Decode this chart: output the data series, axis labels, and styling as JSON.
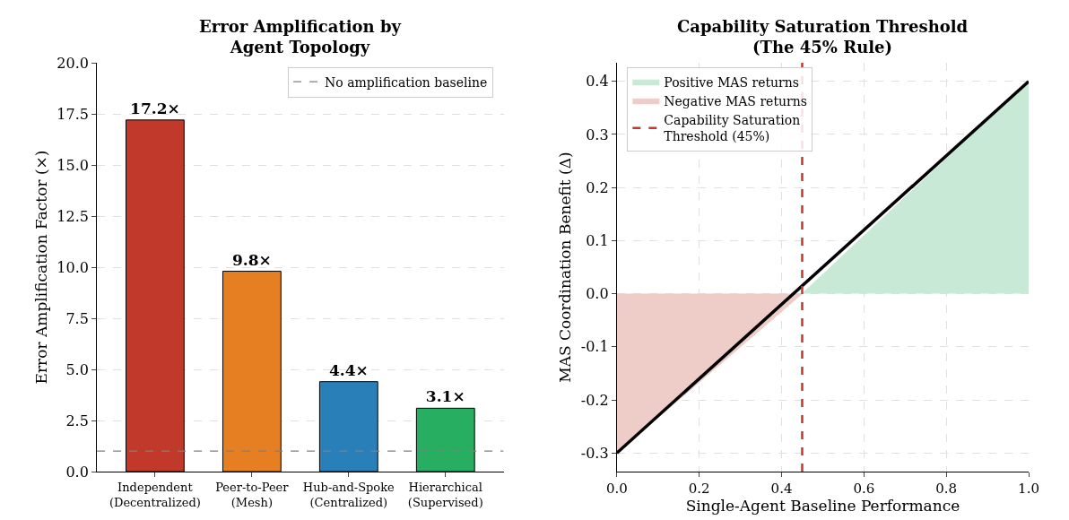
{
  "chart_data": [
    {
      "type": "bar",
      "title": "Error Amplification by\nAgent Topology",
      "ylabel": "Error Amplification Factor (×)",
      "categories": [
        "Independent\n(Decentralized)",
        "Peer-to-Peer\n(Mesh)",
        "Hub-and-Spoke\n(Centralized)",
        "Hierarchical\n(Supervised)"
      ],
      "values": [
        17.2,
        9.8,
        4.4,
        3.1
      ],
      "colors": [
        "#c0392b",
        "#e67e22",
        "#2980b9",
        "#27ae60"
      ],
      "value_labels": [
        "17.2×",
        "9.8×",
        "4.4×",
        "3.1×"
      ],
      "ylim": [
        0,
        20
      ],
      "yticks": [
        {
          "value": 0,
          "label": "0.0"
        },
        {
          "value": 2.5,
          "label": "2.5"
        },
        {
          "value": 5,
          "label": "5.0"
        },
        {
          "value": 7.5,
          "label": "7.5"
        },
        {
          "value": 10,
          "label": "10.0"
        },
        {
          "value": 12.5,
          "label": "12.5"
        },
        {
          "value": 15,
          "label": "15.0"
        },
        {
          "value": 17.5,
          "label": "17.5"
        },
        {
          "value": 20,
          "label": "20.0"
        }
      ],
      "ref_lines": [
        {
          "axis": "y",
          "value": 1,
          "label": "No amplification baseline",
          "color": "#808080",
          "line_style": "dashed"
        }
      ],
      "grid": "y",
      "legend": "top right"
    },
    {
      "type": "area",
      "title": "Capability Saturation Threshold\n(The 45% Rule)",
      "xlabel": "Single-Agent Baseline Performance",
      "ylabel": "MAS Coordination Benefit (Δ)",
      "series": [
        {
          "type": "area",
          "name": "Positive MAS returns",
          "color": "#c8e9d5",
          "x": [
            0.45,
            1.0
          ],
          "values": [
            0,
            0.4
          ]
        },
        {
          "type": "area",
          "name": "Negative MAS returns",
          "color": "#eeccc8",
          "x": [
            0.0,
            0.45
          ],
          "values": [
            -0.3,
            0
          ]
        },
        {
          "type": "line",
          "color": "#000000",
          "x": [
            0.0,
            1.0
          ],
          "values": [
            -0.3,
            0.4
          ]
        }
      ],
      "xlim": [
        0,
        1
      ],
      "xticks": [
        {
          "value": 0,
          "label": "0.0"
        },
        {
          "value": 0.2,
          "label": "0.2"
        },
        {
          "value": 0.4,
          "label": "0.4"
        },
        {
          "value": 0.6,
          "label": "0.6"
        },
        {
          "value": 0.8,
          "label": "0.8"
        },
        {
          "value": 1,
          "label": "1.0"
        }
      ],
      "ylim": [
        -0.335,
        0.435
      ],
      "yticks": [
        {
          "value": -0.3,
          "label": "-0.3"
        },
        {
          "value": -0.2,
          "label": "-0.2"
        },
        {
          "value": -0.1,
          "label": "-0.1"
        },
        {
          "value": 0,
          "label": "0.0"
        },
        {
          "value": 0.1,
          "label": "0.1"
        },
        {
          "value": 0.2,
          "label": "0.2"
        },
        {
          "value": 0.3,
          "label": "0.3"
        },
        {
          "value": 0.4,
          "label": "0.4"
        }
      ],
      "ref_lines": [
        {
          "axis": "x",
          "value": 0.45,
          "label": "Capability Saturation\nThreshold (45%)",
          "color": "#c0392b",
          "line_style": "dashed"
        }
      ],
      "grid": true,
      "legend": "top left"
    }
  ]
}
